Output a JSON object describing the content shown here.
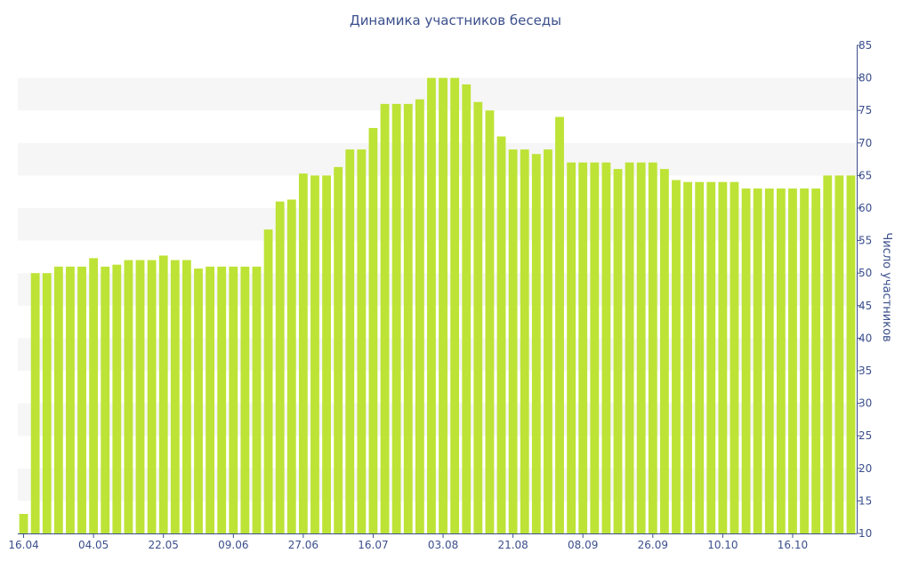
{
  "chart_data": {
    "type": "bar",
    "title": "Динамика участников беседы",
    "ylabel": "Число участников",
    "xlabel": "",
    "ylim": [
      10,
      85
    ],
    "y_ticks": [
      10,
      15,
      20,
      25,
      30,
      35,
      40,
      45,
      50,
      55,
      60,
      65,
      70,
      75,
      80,
      85
    ],
    "x_ticks": [
      {
        "label": "16.04",
        "index": 0
      },
      {
        "label": "04.05",
        "index": 6
      },
      {
        "label": "22.05",
        "index": 12
      },
      {
        "label": "09.06",
        "index": 18
      },
      {
        "label": "27.06",
        "index": 24
      },
      {
        "label": "16.07",
        "index": 30
      },
      {
        "label": "03.08",
        "index": 36
      },
      {
        "label": "21.08",
        "index": 42
      },
      {
        "label": "08.09",
        "index": 48
      },
      {
        "label": "26.09",
        "index": 54
      },
      {
        "label": "10.10",
        "index": 60
      },
      {
        "label": "16.10",
        "index": 66
      }
    ],
    "values": [
      13,
      50,
      50,
      51,
      51,
      51,
      52.3,
      51,
      51.3,
      52,
      52,
      52,
      52.7,
      52,
      52,
      50.7,
      51,
      51,
      51,
      51,
      51,
      56.7,
      61,
      61.3,
      65.3,
      65,
      65,
      66.3,
      69,
      69,
      72.3,
      76,
      76,
      76,
      76.7,
      80,
      80,
      80,
      79,
      76.3,
      75,
      71,
      69,
      69,
      68.3,
      69,
      74,
      67,
      67,
      67,
      67,
      66,
      67,
      67,
      67,
      66,
      64.3,
      64,
      64,
      64,
      64,
      64,
      63,
      63,
      63,
      63,
      63,
      63,
      63,
      65,
      65,
      65
    ],
    "grid": "alternating horizontal bands",
    "y_axis_position": "right",
    "bar_color": "#bde336",
    "band_color": "#f6f6f6",
    "text_color": "#3b4f8c"
  }
}
